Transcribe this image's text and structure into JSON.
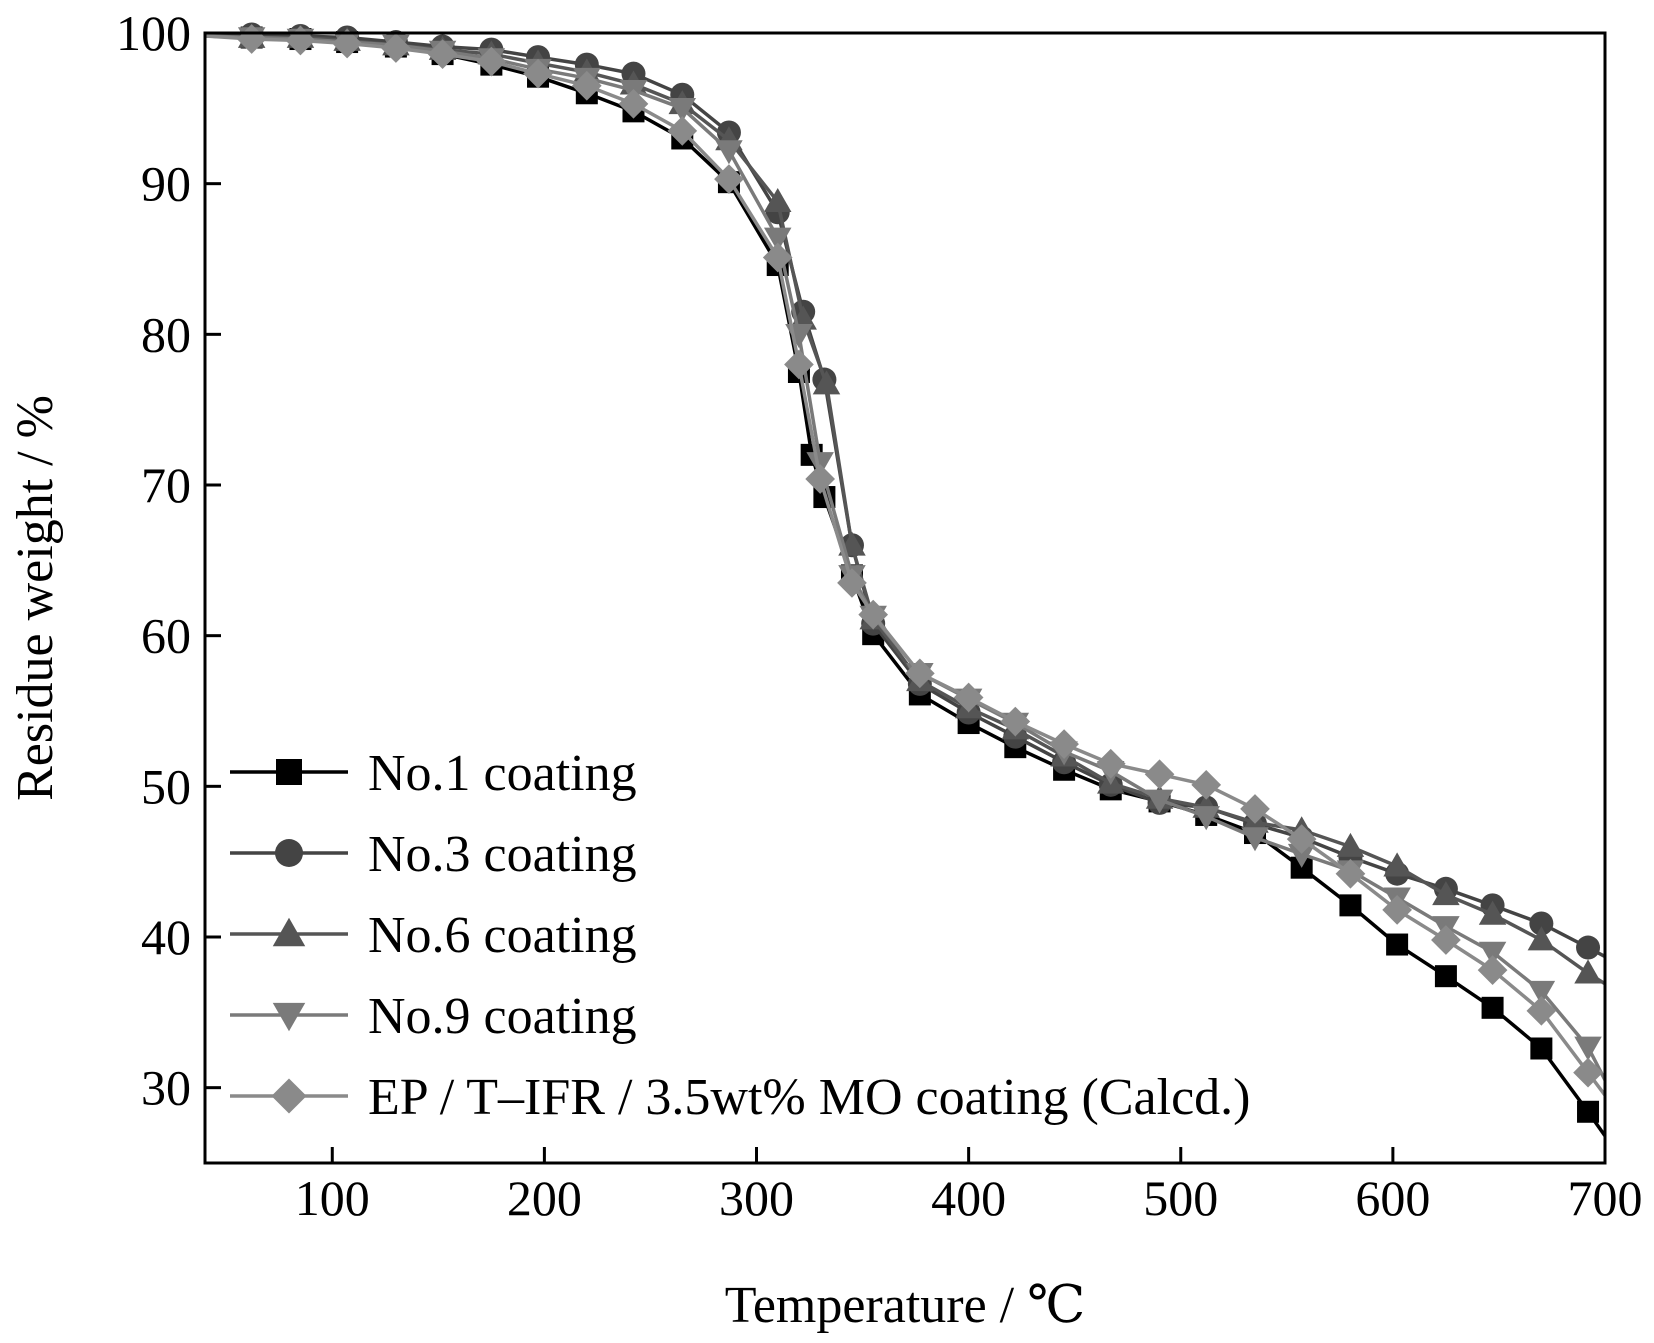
{
  "chart_data": {
    "type": "line",
    "title": "",
    "xlabel": "Temperature / ℃",
    "ylabel": "Residue weight / %",
    "xlim": [
      40,
      700
    ],
    "ylim": [
      25,
      100
    ],
    "xticks": [
      100,
      200,
      300,
      400,
      500,
      600,
      700
    ],
    "yticks": [
      30,
      40,
      50,
      60,
      70,
      80,
      90,
      100
    ],
    "xtick_labels": [
      "100",
      "200",
      "300",
      "400",
      "500",
      "600",
      "700"
    ],
    "ytick_labels": [
      "30",
      "40",
      "50",
      "60",
      "70",
      "80",
      "90",
      "100"
    ],
    "grid": false,
    "legend_position": "bottom-left",
    "series": [
      {
        "name": "No.1 coating",
        "marker": "square",
        "color": "#000000",
        "x": [
          40,
          62,
          85,
          107,
          130,
          152,
          175,
          197,
          220,
          242,
          265,
          287,
          310,
          320,
          326,
          332,
          345,
          355,
          377,
          400,
          422,
          445,
          467,
          490,
          512,
          535,
          557,
          580,
          602,
          625,
          647,
          670,
          692,
          700
        ],
        "y": [
          99.8,
          99.7,
          99.6,
          99.4,
          99.1,
          98.6,
          97.9,
          97.1,
          96.0,
          94.8,
          93.0,
          90.1,
          84.6,
          77.5,
          72.0,
          69.2,
          64.0,
          60.1,
          56.1,
          54.2,
          52.6,
          51.1,
          49.8,
          49.0,
          48.1,
          46.9,
          44.6,
          42.1,
          39.5,
          37.4,
          35.3,
          32.6,
          28.4,
          26.8
        ]
      },
      {
        "name": "No.3 coating",
        "marker": "circle",
        "color": "#444444",
        "x": [
          40,
          62,
          85,
          107,
          130,
          152,
          175,
          197,
          220,
          242,
          265,
          287,
          310,
          322,
          332,
          345,
          355,
          377,
          400,
          422,
          445,
          467,
          490,
          512,
          535,
          557,
          580,
          602,
          625,
          647,
          670,
          692,
          700
        ],
        "y": [
          99.9,
          99.9,
          99.8,
          99.7,
          99.4,
          99.1,
          98.9,
          98.4,
          97.9,
          97.3,
          95.9,
          93.4,
          88.1,
          81.5,
          77.0,
          66.0,
          60.8,
          56.8,
          54.9,
          53.3,
          51.6,
          50.1,
          48.9,
          48.6,
          47.5,
          46.6,
          45.3,
          44.2,
          43.2,
          42.1,
          40.9,
          39.3,
          38.7
        ]
      },
      {
        "name": "No.6 coating",
        "marker": "triangle-up",
        "color": "#555555",
        "x": [
          40,
          62,
          85,
          107,
          130,
          152,
          175,
          197,
          220,
          242,
          265,
          287,
          310,
          322,
          333,
          345,
          355,
          377,
          400,
          422,
          445,
          467,
          490,
          512,
          535,
          557,
          580,
          602,
          625,
          647,
          670,
          692,
          700
        ],
        "y": [
          99.8,
          99.7,
          99.7,
          99.5,
          99.2,
          98.9,
          98.6,
          98.0,
          97.4,
          96.6,
          95.3,
          92.9,
          88.8,
          81.0,
          76.7,
          66.0,
          61.1,
          57.0,
          55.2,
          53.8,
          52.0,
          50.2,
          49.2,
          48.6,
          47.6,
          47.1,
          46.0,
          44.7,
          42.8,
          41.5,
          39.8,
          37.6,
          36.9
        ]
      },
      {
        "name": "No.9 coating",
        "marker": "triangle-down",
        "color": "#7a7a7a",
        "x": [
          40,
          62,
          85,
          107,
          130,
          152,
          175,
          197,
          220,
          242,
          265,
          287,
          310,
          320,
          330,
          345,
          355,
          377,
          400,
          422,
          445,
          467,
          490,
          512,
          535,
          557,
          580,
          602,
          625,
          647,
          670,
          692,
          700
        ],
        "y": [
          99.8,
          99.7,
          99.6,
          99.4,
          99.2,
          98.8,
          98.3,
          97.6,
          97.0,
          96.2,
          95.0,
          92.2,
          86.4,
          80.0,
          71.5,
          64.0,
          61.3,
          57.5,
          55.8,
          54.2,
          52.3,
          51.0,
          49.1,
          48.0,
          46.6,
          45.5,
          44.4,
          42.6,
          40.7,
          39.0,
          36.4,
          32.7,
          30.5
        ]
      },
      {
        "name": "EP / T–IFR / 3.5wt% MO coating (Calcd.)",
        "marker": "diamond",
        "color": "#8a8a8a",
        "x": [
          40,
          62,
          85,
          107,
          130,
          152,
          175,
          197,
          220,
          242,
          265,
          287,
          310,
          320,
          330,
          345,
          355,
          377,
          400,
          422,
          445,
          467,
          490,
          512,
          535,
          557,
          580,
          602,
          625,
          647,
          670,
          692,
          700
        ],
        "y": [
          99.8,
          99.6,
          99.5,
          99.3,
          99.0,
          98.6,
          98.1,
          97.3,
          96.5,
          95.3,
          93.5,
          90.3,
          85.1,
          78.0,
          70.4,
          63.5,
          61.4,
          57.5,
          55.9,
          54.3,
          52.8,
          51.5,
          50.8,
          50.1,
          48.5,
          46.5,
          44.2,
          41.8,
          39.8,
          37.8,
          35.1,
          31.0,
          29.5
        ]
      }
    ]
  }
}
